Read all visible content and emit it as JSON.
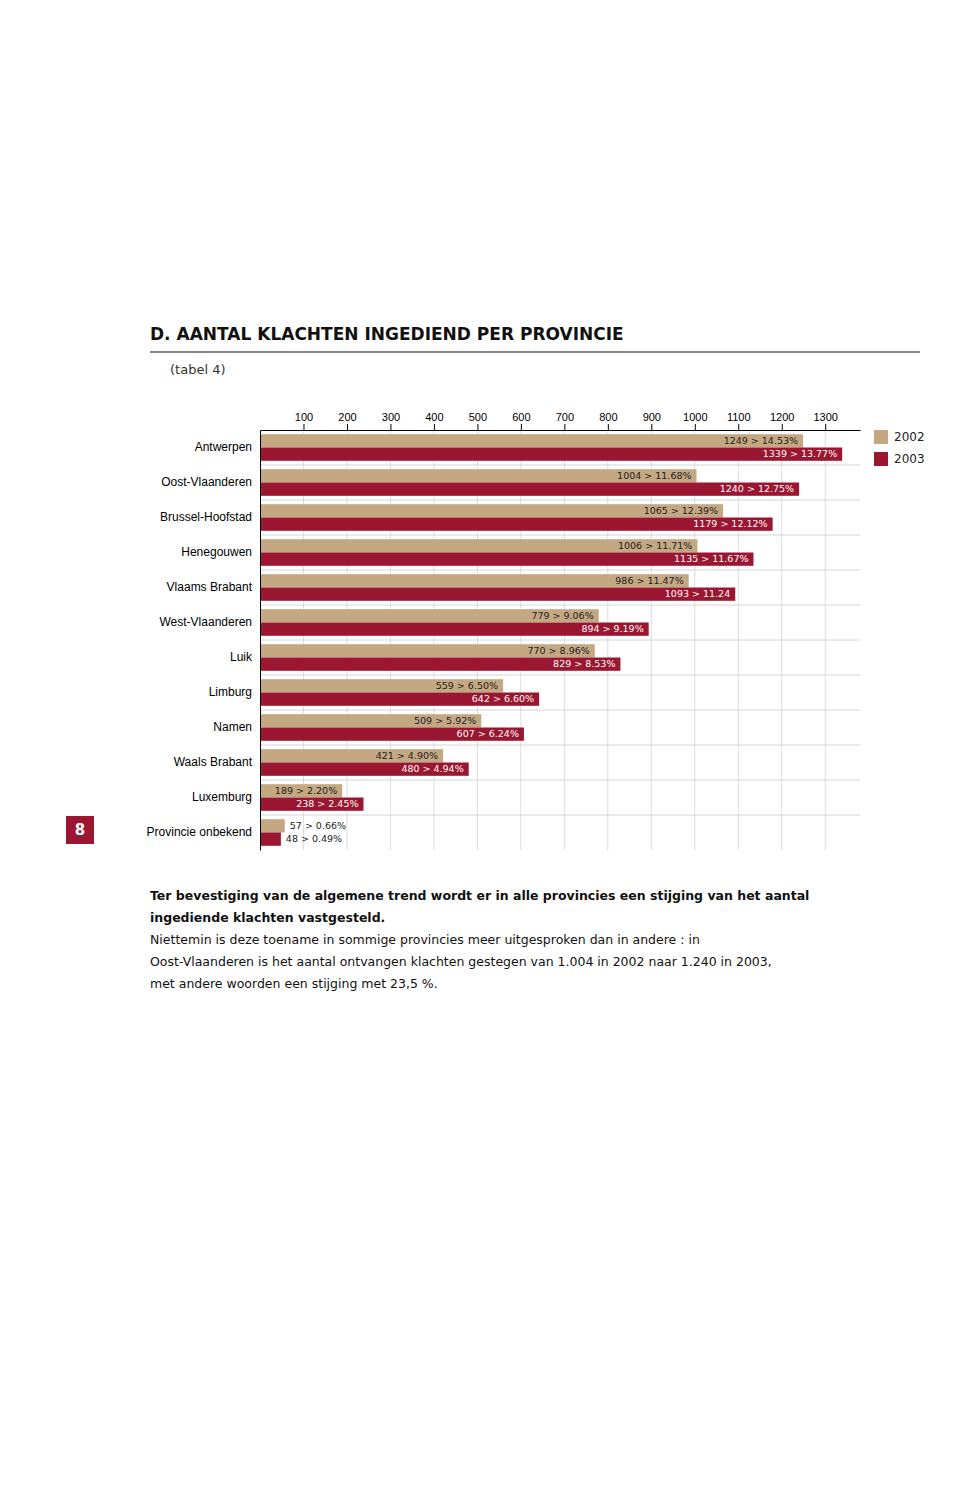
{
  "chart_data": {
    "type": "bar",
    "orientation": "horizontal",
    "title": "D. AANTAL KLACHTEN INGEDIEND PER PROVINCIE",
    "subtitle": "(tabel 4)",
    "categories": [
      "Antwerpen",
      "Oost-Vlaanderen",
      "Brussel-Hoofstad",
      "Henegouwen",
      "Vlaams Brabant",
      "West-Vlaanderen",
      "Luik",
      "Limburg",
      "Namen",
      "Waals Brabant",
      "Luxemburg",
      "Provincie onbekend"
    ],
    "series": [
      {
        "name": "2002",
        "color": "#C4A882",
        "values": [
          1249,
          1004,
          1065,
          1006,
          986,
          779,
          770,
          559,
          509,
          421,
          189,
          57
        ],
        "value_labels": [
          "1249 > 14.53%",
          "1004 > 11.68%",
          "1065 > 12.39%",
          "1006 > 11.71%",
          "986 > 11.47%",
          "779 > 9.06%",
          "770 > 8.96%",
          "559 > 6.50%",
          "509 > 5.92%",
          "421 > 4.90%",
          "189 > 2.20%",
          "57 > 0.66%"
        ]
      },
      {
        "name": "2003",
        "color": "#9B1630",
        "values": [
          1339,
          1240,
          1179,
          1135,
          1093,
          894,
          829,
          642,
          607,
          480,
          238,
          48
        ],
        "value_labels": [
          "1339 > 13.77%",
          "1240 > 12.75%",
          "1179 > 12.12%",
          "1135 > 11.67%",
          "1093 > 11.24",
          "894 > 9.19%",
          "829 > 8.53%",
          "642 > 6.60%",
          "607 > 6.24%",
          "480 > 4.94%",
          "238 > 2.45%",
          "48 > 0.49%"
        ]
      }
    ],
    "xlim": [
      0,
      1380
    ],
    "xticks": [
      100,
      200,
      300,
      400,
      500,
      600,
      700,
      800,
      900,
      1000,
      1100,
      1200,
      1300
    ],
    "grid": true,
    "legend": "right",
    "paragraph": [
      "Ter bevestiging van de algemene trend wordt er in alle provincies een stijging van het aantal",
      "ingediende klachten vastgesteld.",
      "Niettemin is deze toename in sommige provincies meer uitgesproken dan in andere : in",
      "Oost-Vlaanderen is het aantal ontvangen klachten gestegen van 1.004 in 2002 naar 1.240 in 2003,",
      "met andere woorden een stijging met 23,5 %."
    ],
    "page_number": "8"
  }
}
